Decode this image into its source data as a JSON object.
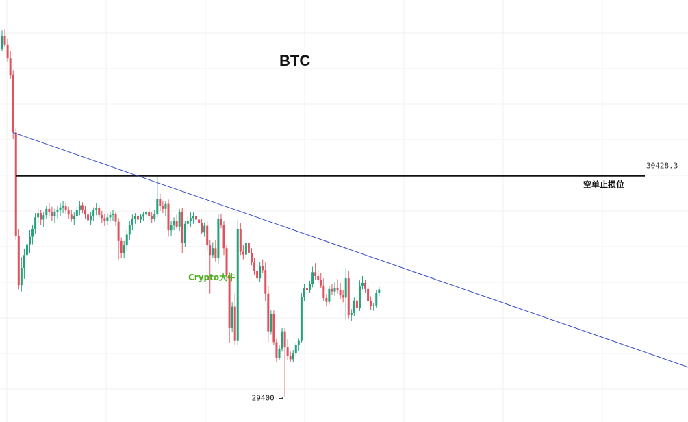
{
  "chart_data": {
    "type": "candlestick",
    "title": "BTC",
    "watermark": "Crypto大牛",
    "y_range": [
      29350,
      31100
    ],
    "grid": true,
    "colors": {
      "up": "#26a17b",
      "down": "#e0525d",
      "trendline": "#2f49c8",
      "level_line": "#111111",
      "watermark": "#4cae1c"
    },
    "level": {
      "value": 30428.3,
      "label": "30428.3",
      "annotation": "空单止损位"
    },
    "low_marker": {
      "value": 29400,
      "label": "29400 →"
    },
    "trendline": {
      "start": {
        "index": 4,
        "value": 30630
      },
      "end": {
        "index": 198,
        "value": 29760
      }
    },
    "candles": [
      [
        31020,
        31105,
        31010,
        31080
      ],
      [
        31080,
        31110,
        31030,
        31040
      ],
      [
        31040,
        31065,
        30960,
        30975
      ],
      [
        30975,
        31010,
        30880,
        30895
      ],
      [
        30900,
        30920,
        30600,
        30630
      ],
      [
        30630,
        30650,
        30130,
        30150
      ],
      [
        30150,
        30180,
        29900,
        29920
      ],
      [
        29920,
        30050,
        29890,
        30000
      ],
      [
        30000,
        30090,
        29950,
        30060
      ],
      [
        30060,
        30130,
        30020,
        30110
      ],
      [
        30110,
        30175,
        30070,
        30145
      ],
      [
        30145,
        30200,
        30110,
        30180
      ],
      [
        30180,
        30255,
        30160,
        30235
      ],
      [
        30235,
        30280,
        30210,
        30255
      ],
      [
        30255,
        30270,
        30200,
        30225
      ],
      [
        30225,
        30260,
        30190,
        30245
      ],
      [
        30245,
        30290,
        30230,
        30275
      ],
      [
        30275,
        30300,
        30240,
        30260
      ],
      [
        30260,
        30285,
        30220,
        30240
      ],
      [
        30240,
        30275,
        30210,
        30262
      ],
      [
        30262,
        30290,
        30230,
        30270
      ],
      [
        30270,
        30300,
        30240,
        30282
      ],
      [
        30282,
        30310,
        30255,
        30290
      ],
      [
        30290,
        30305,
        30250,
        30268
      ],
      [
        30268,
        30285,
        30230,
        30248
      ],
      [
        30248,
        30270,
        30215,
        30228
      ],
      [
        30228,
        30258,
        30200,
        30242
      ],
      [
        30242,
        30290,
        30225,
        30270
      ],
      [
        30270,
        30310,
        30245,
        30292
      ],
      [
        30292,
        30305,
        30255,
        30272
      ],
      [
        30272,
        30288,
        30230,
        30248
      ],
      [
        30248,
        30264,
        30205,
        30222
      ],
      [
        30222,
        30260,
        30200,
        30240
      ],
      [
        30240,
        30282,
        30220,
        30268
      ],
      [
        30268,
        30300,
        30245,
        30278
      ],
      [
        30278,
        30292,
        30235,
        30246
      ],
      [
        30246,
        30265,
        30210,
        30232
      ],
      [
        30232,
        30250,
        30195,
        30218
      ],
      [
        30218,
        30255,
        30200,
        30235
      ],
      [
        30235,
        30262,
        30215,
        30246
      ],
      [
        30246,
        30268,
        30220,
        30252
      ],
      [
        30252,
        30262,
        30195,
        30215
      ],
      [
        30215,
        30232,
        30040,
        30125
      ],
      [
        30125,
        30142,
        30045,
        30068
      ],
      [
        30068,
        30125,
        30045,
        30105
      ],
      [
        30105,
        30175,
        30080,
        30155
      ],
      [
        30155,
        30220,
        30130,
        30198
      ],
      [
        30198,
        30248,
        30175,
        30230
      ],
      [
        30230,
        30255,
        30205,
        30240
      ],
      [
        30240,
        30260,
        30212,
        30225
      ],
      [
        30225,
        30252,
        30208,
        30238
      ],
      [
        30238,
        30262,
        30220,
        30248
      ],
      [
        30248,
        30270,
        30228,
        30260
      ],
      [
        30260,
        30280,
        30220,
        30240
      ],
      [
        30240,
        30258,
        30210,
        30230
      ],
      [
        30230,
        30270,
        30215,
        30252
      ],
      [
        30252,
        30428,
        30235,
        30320
      ],
      [
        30320,
        30345,
        30265,
        30288
      ],
      [
        30288,
        30310,
        30255,
        30275
      ],
      [
        30275,
        30312,
        30240,
        30298
      ],
      [
        30298,
        30318,
        30145,
        30175
      ],
      [
        30175,
        30218,
        30150,
        30198
      ],
      [
        30198,
        30235,
        30175,
        30218
      ],
      [
        30218,
        30248,
        30178,
        30192
      ],
      [
        30192,
        30275,
        30172,
        30262
      ],
      [
        30262,
        30280,
        30070,
        30115
      ],
      [
        30115,
        30218,
        30098,
        30205
      ],
      [
        30205,
        30238,
        30172,
        30220
      ],
      [
        30220,
        30260,
        30190,
        30232
      ],
      [
        30232,
        30258,
        30205,
        30242
      ],
      [
        30242,
        30262,
        30215,
        30225
      ],
      [
        30225,
        30242,
        30192,
        30210
      ],
      [
        30210,
        30228,
        30158,
        30165
      ],
      [
        30165,
        30212,
        30145,
        30196
      ],
      [
        30196,
        30220,
        30080,
        30105
      ],
      [
        30105,
        30130,
        29880,
        30060
      ],
      [
        30060,
        30120,
        30045,
        30092
      ],
      [
        30092,
        30128,
        30030,
        30045
      ],
      [
        30045,
        30248,
        30020,
        30230
      ],
      [
        30230,
        30250,
        30185,
        30200
      ],
      [
        30200,
        30218,
        30060,
        30092
      ],
      [
        30092,
        30108,
        29940,
        29965
      ],
      [
        29965,
        29980,
        29650,
        29720
      ],
      [
        29720,
        29840,
        29700,
        29820
      ],
      [
        29820,
        29880,
        29640,
        29660
      ],
      [
        29660,
        30225,
        29640,
        30180
      ],
      [
        30180,
        30210,
        30060,
        30075
      ],
      [
        30075,
        30108,
        30040,
        30062
      ],
      [
        30062,
        30128,
        30045,
        30118
      ],
      [
        30118,
        30145,
        30052,
        30070
      ],
      [
        30070,
        30092,
        30012,
        30025
      ],
      [
        30025,
        30048,
        29968,
        29985
      ],
      [
        29985,
        30015,
        29940,
        29952
      ],
      [
        29952,
        30028,
        29935,
        30008
      ],
      [
        30008,
        30040,
        29975,
        29990
      ],
      [
        29990,
        30025,
        29845,
        29880
      ],
      [
        29880,
        29915,
        29655,
        29705
      ],
      [
        29705,
        29802,
        29690,
        29785
      ],
      [
        29785,
        29802,
        29640,
        29655
      ],
      [
        29655,
        29670,
        29560,
        29582
      ],
      [
        29582,
        29640,
        29570,
        29625
      ],
      [
        29625,
        29720,
        29610,
        29705
      ],
      [
        29705,
        29720,
        29400,
        29630
      ],
      [
        29630,
        29668,
        29570,
        29590
      ],
      [
        29590,
        29610,
        29562,
        29575
      ],
      [
        29575,
        29618,
        29560,
        29605
      ],
      [
        29605,
        29650,
        29590,
        29640
      ],
      [
        29640,
        29670,
        29615,
        29660
      ],
      [
        29660,
        29885,
        29650,
        29865
      ],
      [
        29865,
        29925,
        29845,
        29905
      ],
      [
        29905,
        29932,
        29880,
        29895
      ],
      [
        29895,
        29940,
        29885,
        29925
      ],
      [
        29925,
        30005,
        29910,
        29980
      ],
      [
        29980,
        30022,
        29945,
        29962
      ],
      [
        29962,
        29990,
        29930,
        29945
      ],
      [
        29945,
        29975,
        29905,
        29918
      ],
      [
        29918,
        29952,
        29845,
        29860
      ],
      [
        29860,
        29878,
        29825,
        29842
      ],
      [
        29842,
        29918,
        29830,
        29902
      ],
      [
        29902,
        29925,
        29875,
        29890
      ],
      [
        29890,
        29932,
        29870,
        29908
      ],
      [
        29908,
        29948,
        29880,
        29895
      ],
      [
        29895,
        29930,
        29855,
        29872
      ],
      [
        29872,
        29898,
        29840,
        29862
      ],
      [
        29862,
        29998,
        29760,
        29952
      ],
      [
        29952,
        29988,
        29765,
        29780
      ],
      [
        29780,
        29808,
        29755,
        29790
      ],
      [
        29790,
        29862,
        29775,
        29848
      ],
      [
        29848,
        29868,
        29805,
        29815
      ],
      [
        29815,
        29942,
        29800,
        29918
      ],
      [
        29918,
        29962,
        29900,
        29930
      ],
      [
        29930,
        29946,
        29885,
        29902
      ],
      [
        29902,
        29915,
        29830,
        29845
      ],
      [
        29845,
        29868,
        29805,
        29822
      ],
      [
        29822,
        29835,
        29800,
        29826
      ],
      [
        29826,
        29898,
        29814,
        29885
      ],
      [
        29885,
        29912,
        29868,
        29900
      ]
    ]
  }
}
